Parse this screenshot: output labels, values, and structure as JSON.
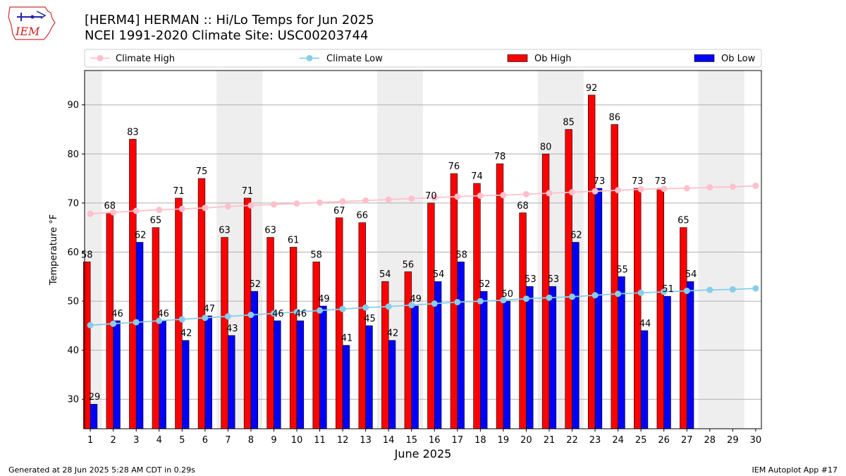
{
  "header": {
    "title_line1": "[HERM4] HERMAN :: Hi/Lo Temps for Jun 2025",
    "title_line2": "NCEI 1991-2020 Climate Site: USC00203744",
    "logo_text": "IEM"
  },
  "footer": {
    "generated": "Generated at 28 Jun 2025 5:28 AM CDT in 0.29s",
    "app": "IEM Autoplot App #17"
  },
  "colors": {
    "ob_high": "#ff0000",
    "ob_low": "#0000ff",
    "climate_high": "#ffc0cb",
    "climate_low": "#87ceeb",
    "weekend_band": "#eeeeee",
    "grid": "#b0b0b0"
  },
  "chart_data": {
    "type": "bar",
    "title": "[HERM4] HERMAN :: Hi/Lo Temps for Jun 2025",
    "xlabel": "June 2025",
    "ylabel": "Temperature °F",
    "ylim": [
      24,
      97
    ],
    "yticks": [
      30,
      40,
      50,
      60,
      70,
      80,
      90
    ],
    "grid": "horizontal",
    "legend_position": "top",
    "weekend_shading": [
      [
        1,
        1
      ],
      [
        7,
        8
      ],
      [
        14,
        15
      ],
      [
        21,
        22
      ],
      [
        28,
        29
      ]
    ],
    "x": [
      1,
      2,
      3,
      4,
      5,
      6,
      7,
      8,
      9,
      10,
      11,
      12,
      13,
      14,
      15,
      16,
      17,
      18,
      19,
      20,
      21,
      22,
      23,
      24,
      25,
      26,
      27,
      28,
      29,
      30
    ],
    "series": [
      {
        "name": "Climate High",
        "kind": "line",
        "values": [
          67.8,
          68.1,
          68.4,
          68.6,
          68.8,
          69.0,
          69.3,
          69.5,
          69.7,
          69.9,
          70.1,
          70.3,
          70.5,
          70.7,
          70.9,
          71.1,
          71.3,
          71.5,
          71.6,
          71.8,
          72.0,
          72.2,
          72.4,
          72.6,
          72.8,
          72.9,
          73.0,
          73.2,
          73.3,
          73.5
        ]
      },
      {
        "name": "Climate Low",
        "kind": "line",
        "values": [
          45.1,
          45.4,
          45.7,
          46.0,
          46.3,
          46.6,
          46.9,
          47.2,
          47.5,
          47.8,
          48.1,
          48.4,
          48.7,
          48.9,
          49.2,
          49.5,
          49.8,
          50.0,
          50.2,
          50.5,
          50.7,
          50.9,
          51.2,
          51.5,
          51.7,
          51.9,
          52.1,
          52.3,
          52.4,
          52.6
        ]
      },
      {
        "name": "Ob High",
        "kind": "bar",
        "values": [
          58,
          68,
          83,
          65,
          71,
          75,
          63,
          71,
          63,
          61,
          58,
          67,
          66,
          54,
          56,
          70,
          76,
          74,
          78,
          68,
          80,
          85,
          92,
          86,
          73,
          73,
          65,
          null,
          null,
          null
        ]
      },
      {
        "name": "Ob Low",
        "kind": "bar",
        "values": [
          29,
          46,
          62,
          46,
          42,
          47,
          43,
          52,
          46,
          46,
          49,
          41,
          45,
          42,
          49,
          54,
          58,
          52,
          50,
          53,
          53,
          62,
          73,
          55,
          44,
          51,
          54,
          null,
          null,
          null
        ]
      }
    ]
  }
}
